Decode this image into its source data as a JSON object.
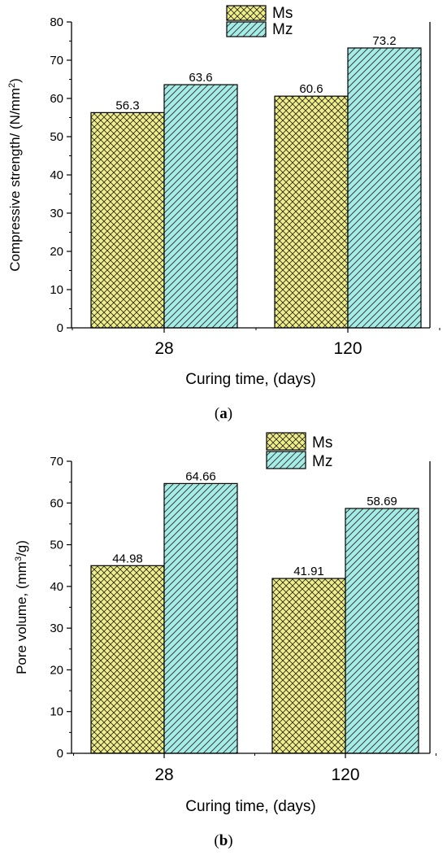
{
  "colors": {
    "series_0_fill": "#f0ee88",
    "series_1_fill": "#a6ece6",
    "hatch_stroke": "#222222",
    "axis": "#000000"
  },
  "chart_data": [
    {
      "type": "bar",
      "panel_caption": {
        "open": "(",
        "letter": "a",
        "close": ")"
      },
      "categories": [
        "28",
        "120"
      ],
      "series": [
        {
          "name": "Ms",
          "values": [
            56.3,
            60.6
          ],
          "labels": [
            "56.3",
            "60.6"
          ],
          "pattern": "crosshatch"
        },
        {
          "name": "Mz",
          "values": [
            63.6,
            73.2
          ],
          "labels": [
            "63.6",
            "73.2"
          ],
          "pattern": "diagonal"
        }
      ],
      "xlabel": "Curing time, (days)",
      "ylabel": {
        "main": "Compressive strength/ (N/mm",
        "sup": "2",
        "close": ")"
      },
      "ylim": [
        0,
        80
      ],
      "yticks": [
        "0",
        "10",
        "20",
        "30",
        "40",
        "50",
        "60",
        "70",
        "80"
      ],
      "grid": false,
      "legend_position": "top-center"
    },
    {
      "type": "bar",
      "panel_caption": {
        "open": "(",
        "letter": "b",
        "close": ")"
      },
      "categories": [
        "28",
        "120"
      ],
      "series": [
        {
          "name": "Ms",
          "values": [
            44.98,
            41.91
          ],
          "labels": [
            "44.98",
            "41.91"
          ],
          "pattern": "crosshatch"
        },
        {
          "name": "Mz",
          "values": [
            64.66,
            58.69
          ],
          "labels": [
            "64.66",
            "58.69"
          ],
          "pattern": "diagonal"
        }
      ],
      "xlabel": "Curing time, (days)",
      "ylabel": {
        "main": "Pore volume, (mm",
        "sup": "3",
        "close": "/g)"
      },
      "ylim": [
        0,
        70
      ],
      "yticks": [
        "0",
        "10",
        "20",
        "30",
        "40",
        "50",
        "60",
        "70"
      ],
      "grid": false,
      "legend_position": "top-center"
    }
  ]
}
